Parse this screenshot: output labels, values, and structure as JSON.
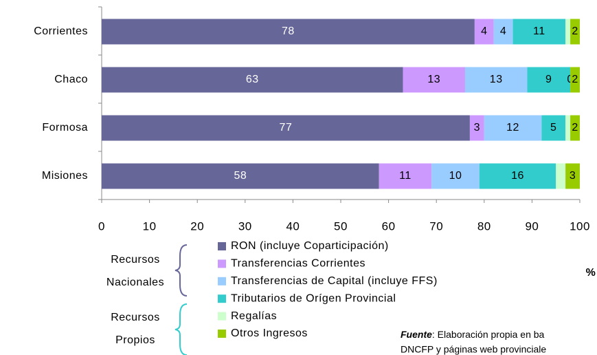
{
  "chart_data": {
    "type": "stacked-barh",
    "categories": [
      "Corrientes",
      "Chaco",
      "Formosa",
      "Misiones"
    ],
    "series": [
      {
        "name": "RON (incluye Coparticipación)",
        "color": "#666699",
        "values": [
          78,
          63,
          77,
          58
        ]
      },
      {
        "name": "Transferencias Corrientes",
        "color": "#cc99ff",
        "values": [
          4,
          13,
          3,
          11
        ]
      },
      {
        "name": "Transferencias de Capital (incluye FFS)",
        "color": "#99ccff",
        "values": [
          4,
          13,
          12,
          10
        ]
      },
      {
        "name": "Tributarios de Orígen Provincial",
        "color": "#33cccc",
        "values": [
          11,
          9,
          5,
          16
        ]
      },
      {
        "name": "Regalías",
        "color": "#ccffcc",
        "values": [
          1,
          0,
          1,
          2
        ],
        "value_labels": [
          null,
          "0",
          null,
          null
        ]
      },
      {
        "name": "Otros Ingresos",
        "color": "#99cc00",
        "values": [
          2,
          2,
          2,
          3
        ]
      }
    ],
    "xlim": [
      0,
      100
    ],
    "xticks": [
      0,
      10,
      20,
      30,
      40,
      50,
      60,
      70,
      80,
      90,
      100
    ],
    "x_label": "%",
    "legend_groups": [
      {
        "lines": [
          "Recursos",
          "Nacionales"
        ],
        "color": "#666699"
      },
      {
        "lines": [
          "Recursos",
          "Propios"
        ],
        "color": "#33cccc"
      }
    ],
    "source": {
      "label": "Fuente",
      "lines": [
        ": Elaboración propia en ba",
        "DNCFP y páginas web provinciale"
      ]
    }
  }
}
